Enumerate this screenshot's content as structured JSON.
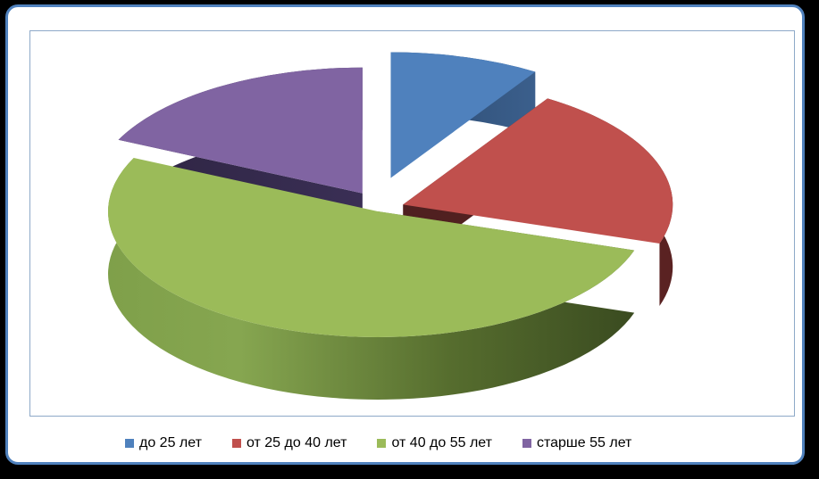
{
  "chart_data": {
    "type": "pie",
    "title": "",
    "style": "3d-exploded",
    "legend_position": "bottom",
    "categories": [
      "до 25 лет",
      "от 25 до 40 лет",
      "от 40 до 55 лет",
      "старше 55 лет"
    ],
    "values": [
      9,
      21,
      52,
      18
    ],
    "units": "%",
    "colors": [
      "#4f81bd",
      "#c0504d",
      "#9bbb59",
      "#8064a2"
    ]
  }
}
